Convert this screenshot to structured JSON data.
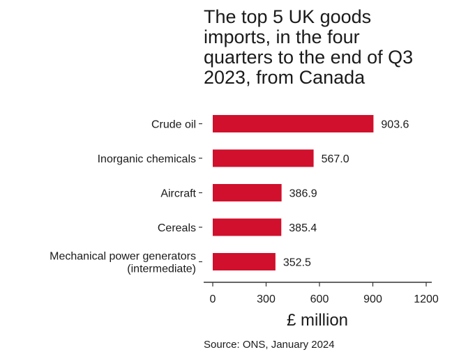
{
  "chart_data": {
    "type": "bar",
    "orientation": "horizontal",
    "title_lines": [
      "The top 5 UK goods",
      "imports, in the four",
      "quarters to the end of Q3",
      "2023, from Canada"
    ],
    "categories": [
      [
        "Crude oil"
      ],
      [
        "Inorganic chemicals"
      ],
      [
        "Aircraft"
      ],
      [
        "Cereals"
      ],
      [
        "Mechanical power generators",
        "(intermediate)"
      ]
    ],
    "values": [
      903.6,
      567.0,
      386.9,
      385.4,
      352.5
    ],
    "value_labels": [
      "903.6",
      "567.0",
      "386.9",
      "385.4",
      "352.5"
    ],
    "xlabel": "£ million",
    "xlim": [
      -40,
      1230
    ],
    "xticks": [
      0,
      300,
      600,
      900,
      1200
    ],
    "grid": false,
    "bar_color": "#d0102c",
    "source": "Source: ONS, January 2024"
  }
}
